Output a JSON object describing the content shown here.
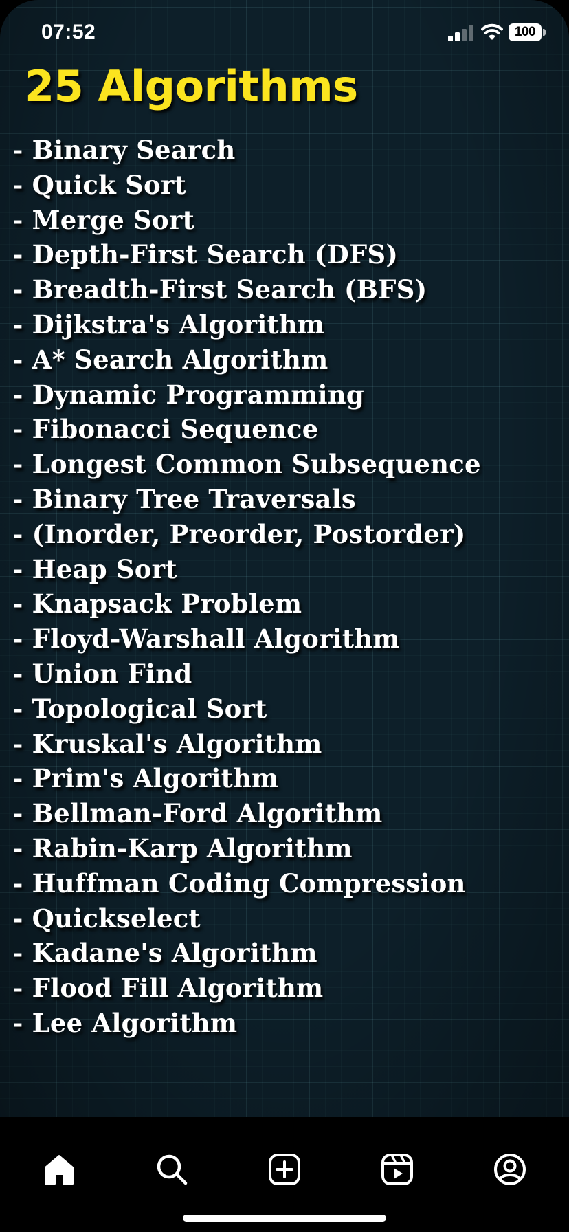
{
  "status_bar": {
    "time": "07:52",
    "battery": "100",
    "signal_icon": "cellular-signal-icon",
    "wifi_icon": "wifi-icon"
  },
  "post": {
    "title": "25 Algorithms",
    "title_color": "#fbe41f",
    "items": [
      "- Binary Search",
      "- Quick Sort",
      "- Merge Sort",
      "- Depth-First Search (DFS)",
      "- Breadth-First Search (BFS)",
      "- Dijkstra's Algorithm",
      "- A* Search Algorithm",
      "- Dynamic Programming",
      "- Fibonacci Sequence",
      "- Longest Common Subsequence",
      "- Binary Tree Traversals",
      "- (Inorder, Preorder, Postorder)",
      "- Heap Sort",
      "- Knapsack Problem",
      "- Floyd-Warshall Algorithm",
      "- Union Find",
      "- Topological Sort",
      "- Kruskal's Algorithm",
      "- Prim's Algorithm",
      "- Bellman-Ford Algorithm",
      "- Rabin-Karp Algorithm",
      "- Huffman Coding Compression",
      "- Quickselect",
      "- Kadane's Algorithm",
      "- Flood Fill Algorithm",
      "- Lee Algorithm"
    ]
  },
  "bottom_nav": {
    "items": [
      {
        "icon": "home-icon"
      },
      {
        "icon": "search-icon"
      },
      {
        "icon": "create-post-icon"
      },
      {
        "icon": "reels-icon"
      },
      {
        "icon": "profile-icon"
      }
    ]
  }
}
